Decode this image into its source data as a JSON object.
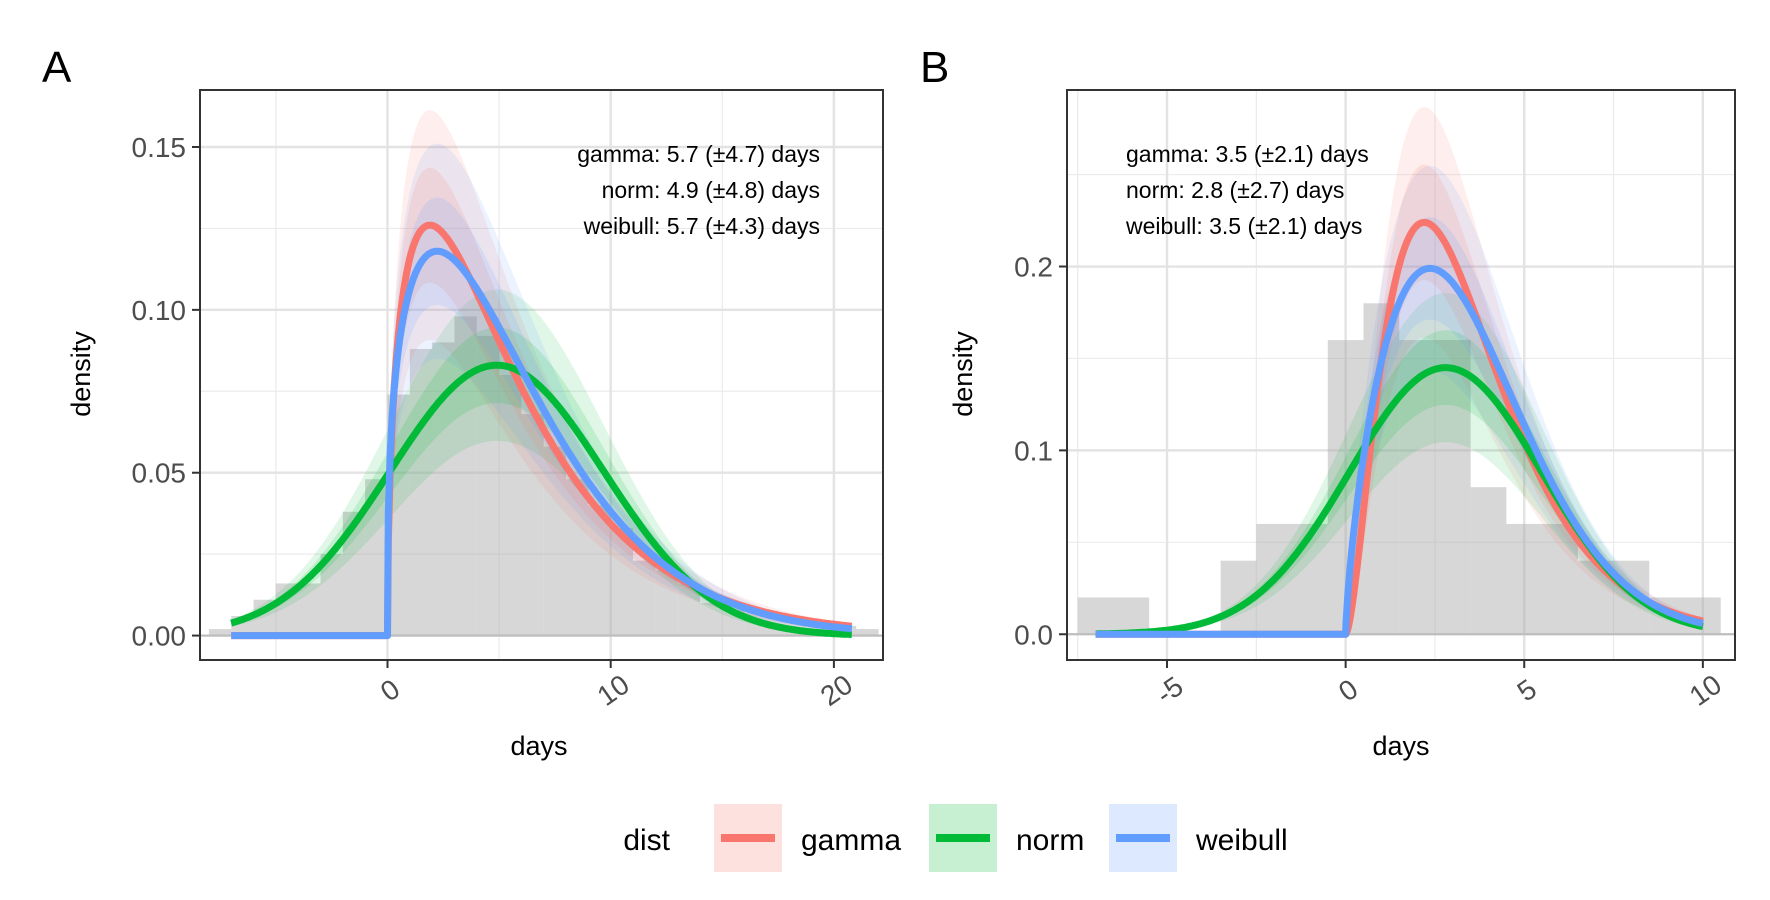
{
  "legend": {
    "title": "dist",
    "items": [
      {
        "label": "gamma",
        "color": "#F8766D"
      },
      {
        "label": "norm",
        "color": "#00BA38"
      },
      {
        "label": "weibull",
        "color": "#619CFF"
      }
    ]
  },
  "chart_data": [
    {
      "panel_label": "A",
      "type": "line",
      "xlabel": "days",
      "ylabel": "density",
      "xlim": [
        -8.4,
        22.2
      ],
      "ylim": [
        -0.0075,
        0.1675
      ],
      "x_ticks": [
        0,
        10,
        20
      ],
      "x_tick_labels": [
        "0",
        "10",
        "20"
      ],
      "y_ticks": [
        0,
        0.05,
        0.1,
        0.15
      ],
      "y_tick_labels": [
        "0.00",
        "0.05",
        "0.10",
        "0.15"
      ],
      "grid": true,
      "annotations": [
        "gamma: 5.7 (±4.7) days",
        "norm: 4.9 (±4.8) days",
        "weibull: 5.7 (±4.3) days"
      ],
      "annotation_align": "right",
      "fit_range": [
        -7.0,
        20.8
      ],
      "histogram": {
        "bin_width": 1,
        "bins": [
          {
            "x0": -8,
            "x1": -7,
            "density": 0.002
          },
          {
            "x0": -7,
            "x1": -6,
            "density": 0.006
          },
          {
            "x0": -6,
            "x1": -5,
            "density": 0.011
          },
          {
            "x0": -5,
            "x1": -4,
            "density": 0.016
          },
          {
            "x0": -4,
            "x1": -3,
            "density": 0.016
          },
          {
            "x0": -3,
            "x1": -2,
            "density": 0.025
          },
          {
            "x0": -2,
            "x1": -1,
            "density": 0.038
          },
          {
            "x0": -1,
            "x1": 0,
            "density": 0.048
          },
          {
            "x0": 0,
            "x1": 1,
            "density": 0.074
          },
          {
            "x0": 1,
            "x1": 2,
            "density": 0.088
          },
          {
            "x0": 2,
            "x1": 3,
            "density": 0.09
          },
          {
            "x0": 3,
            "x1": 4,
            "density": 0.098
          },
          {
            "x0": 4,
            "x1": 5,
            "density": 0.092
          },
          {
            "x0": 5,
            "x1": 6,
            "density": 0.08
          },
          {
            "x0": 6,
            "x1": 7,
            "density": 0.068
          },
          {
            "x0": 7,
            "x1": 8,
            "density": 0.058
          },
          {
            "x0": 8,
            "x1": 9,
            "density": 0.048
          },
          {
            "x0": 9,
            "x1": 10,
            "density": 0.04
          },
          {
            "x0": 10,
            "x1": 11,
            "density": 0.033
          },
          {
            "x0": 11,
            "x1": 12,
            "density": 0.023
          },
          {
            "x0": 12,
            "x1": 13,
            "density": 0.02
          },
          {
            "x0": 13,
            "x1": 14,
            "density": 0.016
          },
          {
            "x0": 14,
            "x1": 15,
            "density": 0.01
          },
          {
            "x0": 15,
            "x1": 16,
            "density": 0.008
          },
          {
            "x0": 16,
            "x1": 17,
            "density": 0.007
          },
          {
            "x0": 17,
            "x1": 18,
            "density": 0.006
          },
          {
            "x0": 18,
            "x1": 19,
            "density": 0.004
          },
          {
            "x0": 19,
            "x1": 20,
            "density": 0.003
          },
          {
            "x0": 20,
            "x1": 21,
            "density": 0.003
          },
          {
            "x0": 21,
            "x1": 22,
            "density": 0.002
          }
        ]
      },
      "series": [
        {
          "name": "gamma",
          "dist": "gamma",
          "mean": 5.7,
          "sd": 4.7,
          "mode": 1.9,
          "peak": 0.126,
          "color": "#F8766D"
        },
        {
          "name": "norm",
          "dist": "norm",
          "mean": 4.9,
          "sd": 4.8,
          "peak": 0.083,
          "color": "#00BA38"
        },
        {
          "name": "weibull",
          "dist": "weibull",
          "mean": 5.7,
          "sd": 4.3,
          "mode": 2.0,
          "peak": 0.118,
          "color": "#619CFF"
        }
      ]
    },
    {
      "panel_label": "B",
      "type": "line",
      "xlabel": "days",
      "ylabel": "density",
      "xlim": [
        -7.8,
        10.9
      ],
      "ylim": [
        -0.014,
        0.296
      ],
      "x_ticks": [
        -5,
        0,
        5,
        10
      ],
      "x_tick_labels": [
        "-5",
        "0",
        "5",
        "10"
      ],
      "y_ticks": [
        0,
        0.1,
        0.2
      ],
      "y_tick_labels": [
        "0.0",
        "0.1",
        "0.2"
      ],
      "grid": true,
      "annotations": [
        "gamma: 3.5 (±2.1) days",
        "norm: 2.8 (±2.7) days",
        "weibull: 3.5 (±2.1) days"
      ],
      "annotation_align": "left",
      "fit_range": [
        -7.0,
        10.0
      ],
      "histogram": {
        "bin_width": 1,
        "bins": [
          {
            "x0": -7.5,
            "x1": -5.5,
            "density": 0.02
          },
          {
            "x0": -3.5,
            "x1": -2.5,
            "density": 0.04
          },
          {
            "x0": -2.5,
            "x1": -1.5,
            "density": 0.06
          },
          {
            "x0": -1.5,
            "x1": -0.5,
            "density": 0.06
          },
          {
            "x0": -0.5,
            "x1": 0.5,
            "density": 0.16
          },
          {
            "x0": 0.5,
            "x1": 1.5,
            "density": 0.18
          },
          {
            "x0": 1.5,
            "x1": 2.5,
            "density": 0.16
          },
          {
            "x0": 2.5,
            "x1": 3.5,
            "density": 0.16
          },
          {
            "x0": 3.5,
            "x1": 4.5,
            "density": 0.08
          },
          {
            "x0": 4.5,
            "x1": 5.5,
            "density": 0.06
          },
          {
            "x0": 5.5,
            "x1": 6.5,
            "density": 0.06
          },
          {
            "x0": 6.5,
            "x1": 7.5,
            "density": 0.04
          },
          {
            "x0": 7.5,
            "x1": 8.5,
            "density": 0.04
          },
          {
            "x0": 8.5,
            "x1": 9.5,
            "density": 0.02
          },
          {
            "x0": 9.5,
            "x1": 10.5,
            "density": 0.02
          }
        ]
      },
      "series": [
        {
          "name": "gamma",
          "dist": "gamma",
          "mean": 3.5,
          "sd": 2.1,
          "mode": 2.2,
          "peak": 0.224,
          "color": "#F8766D"
        },
        {
          "name": "norm",
          "dist": "norm",
          "mean": 2.8,
          "sd": 2.7,
          "peak": 0.145,
          "color": "#00BA38"
        },
        {
          "name": "weibull",
          "dist": "weibull",
          "mean": 3.5,
          "sd": 2.1,
          "mode": 2.3,
          "peak": 0.199,
          "color": "#619CFF"
        }
      ]
    }
  ]
}
